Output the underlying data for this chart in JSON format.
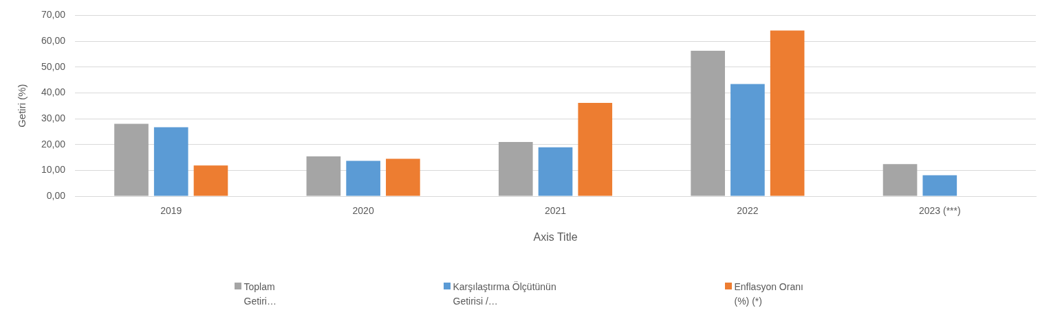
{
  "chart_data": {
    "type": "bar",
    "xlabel": "Axis Title",
    "ylabel": "Getiri (%)",
    "categories": [
      "2019",
      "2020",
      "2021",
      "2022",
      "2023 (***)"
    ],
    "series": [
      {
        "name": "Toplam Getiri…",
        "color": "#a5a5a5",
        "values": [
          28.0,
          15.4,
          21.0,
          56.3,
          12.4
        ]
      },
      {
        "name": "Karşılaştırma Ölçütünün Getirisi /…",
        "color": "#5b9bd5",
        "values": [
          26.7,
          13.7,
          18.9,
          43.4,
          8.1
        ]
      },
      {
        "name": "Enflasyon Oranı (%) (*)",
        "color": "#ed7d31",
        "values": [
          11.9,
          14.5,
          36.1,
          64.1,
          null
        ]
      }
    ],
    "ylim": [
      0,
      70
    ],
    "yticks": [
      {
        "value": 0,
        "label": "0,00"
      },
      {
        "value": 10,
        "label": "10,00"
      },
      {
        "value": 20,
        "label": "20,00"
      },
      {
        "value": 30,
        "label": "30,00"
      },
      {
        "value": 40,
        "label": "40,00"
      },
      {
        "value": 50,
        "label": "50,00"
      },
      {
        "value": 60,
        "label": "60,00"
      },
      {
        "value": 70,
        "label": "70,00"
      }
    ],
    "grid": "y",
    "legend": "bottom"
  }
}
